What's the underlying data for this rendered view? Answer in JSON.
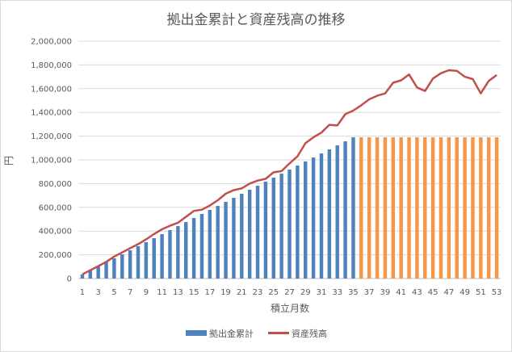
{
  "colors": {
    "cumulative_blue": "#4f81bd",
    "cumulative_orange": "#f79646",
    "balance_red": "#c0504d",
    "grid": "#d9d9d9"
  },
  "chart_data": {
    "type": "bar",
    "title": "拠出金累計と資産残高の推移",
    "xlabel": "積立月数",
    "ylabel": "円",
    "ylim": [
      0,
      2000000
    ],
    "y_tick_step": 200000,
    "y_tick_labels": [
      "0",
      "200,000",
      "400,000",
      "600,000",
      "800,000",
      "1,000,000",
      "1,200,000",
      "1,400,000",
      "1,600,000",
      "1,800,000",
      "2,000,000"
    ],
    "x": [
      1,
      2,
      3,
      4,
      5,
      6,
      7,
      8,
      9,
      10,
      11,
      12,
      13,
      14,
      15,
      16,
      17,
      18,
      19,
      20,
      21,
      22,
      23,
      24,
      25,
      26,
      27,
      28,
      29,
      30,
      31,
      32,
      33,
      34,
      35,
      36,
      37,
      38,
      39,
      40,
      41,
      42,
      43,
      44,
      45,
      46,
      47,
      48,
      49,
      50,
      51,
      52,
      53
    ],
    "x_tick_labels": [
      "1",
      "3",
      "5",
      "7",
      "9",
      "11",
      "13",
      "15",
      "17",
      "19",
      "21",
      "23",
      "25",
      "27",
      "29",
      "31",
      "33",
      "35",
      "37",
      "39",
      "41",
      "43",
      "45",
      "47",
      "49",
      "51",
      "53"
    ],
    "grid": true,
    "legend_position": "bottom",
    "series": [
      {
        "name": "拠出金累計",
        "kind": "bar",
        "values": [
          34000,
          68000,
          102000,
          136000,
          170000,
          204000,
          238000,
          272000,
          306000,
          340000,
          374000,
          408000,
          442000,
          476000,
          510000,
          544000,
          578000,
          612000,
          646000,
          680000,
          714000,
          748000,
          782000,
          816000,
          850000,
          884000,
          918000,
          952000,
          986000,
          1020000,
          1054000,
          1088000,
          1122000,
          1156000,
          1190000,
          1190000,
          1190000,
          1190000,
          1190000,
          1190000,
          1190000,
          1190000,
          1190000,
          1190000,
          1190000,
          1190000,
          1190000,
          1190000,
          1190000,
          1190000,
          1190000,
          1190000,
          1190000
        ]
      },
      {
        "name": "資産残高",
        "kind": "line",
        "values": [
          35000,
          70000,
          105000,
          140000,
          185000,
          220000,
          255000,
          290000,
          330000,
          375000,
          415000,
          445000,
          470000,
          520000,
          570000,
          580000,
          615000,
          660000,
          715000,
          745000,
          760000,
          800000,
          825000,
          840000,
          895000,
          905000,
          970000,
          1030000,
          1140000,
          1190000,
          1230000,
          1295000,
          1290000,
          1385000,
          1415000,
          1460000,
          1510000,
          1540000,
          1560000,
          1650000,
          1670000,
          1720000,
          1610000,
          1580000,
          1685000,
          1730000,
          1755000,
          1750000,
          1700000,
          1680000,
          1560000,
          1665000,
          1715000
        ]
      }
    ]
  }
}
